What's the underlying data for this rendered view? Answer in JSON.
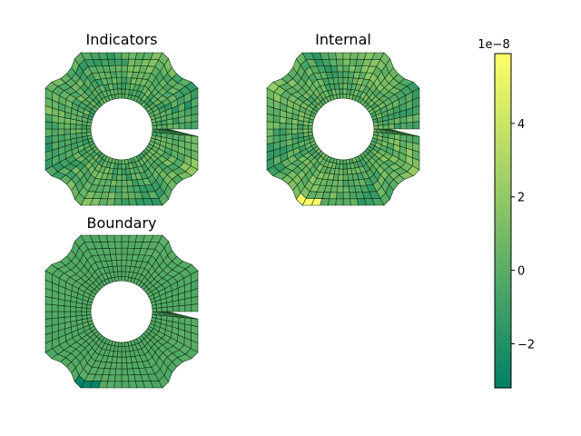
{
  "chart_data": {
    "type": "heatmap",
    "colormap": "summer",
    "colormap_colors": [
      "#008066",
      "#80c066",
      "#ffff66"
    ],
    "panels": [
      {
        "title": "Indicators",
        "level": 0.35,
        "variation": 0.5,
        "hotspot": "none"
      },
      {
        "title": "Internal",
        "level": 0.38,
        "variation": 0.5,
        "hotspot": "lower-left"
      },
      {
        "title": "Boundary",
        "level": 0.33,
        "variation": 0.08,
        "hotspot": "lower-left-low"
      }
    ],
    "colorbar": {
      "min": -3.2e-08,
      "max": 5.9e-08,
      "ticks": [
        -2,
        0,
        2,
        4
      ],
      "tick_labels": [
        "−2",
        "0",
        "2",
        "4"
      ],
      "offset_label": "1e−8"
    }
  }
}
